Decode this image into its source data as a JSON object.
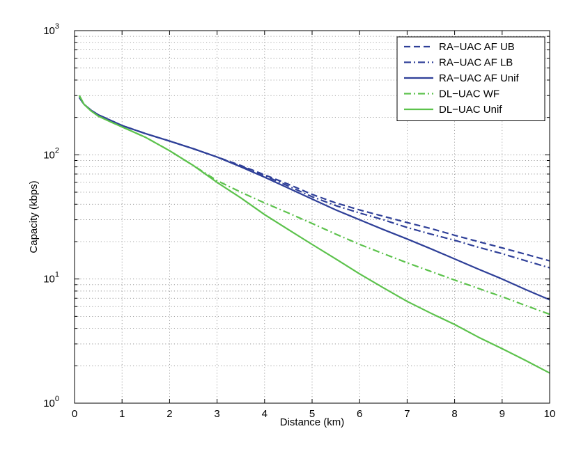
{
  "chart_data": {
    "type": "line",
    "title": "",
    "xlabel": "Distance (km)",
    "ylabel": "Capacity (kbps)",
    "xlim": [
      0,
      10
    ],
    "ylim": [
      1,
      1000
    ],
    "yscale": "log",
    "grid": true,
    "legend_position": "top-right",
    "x_ticks": [
      "0",
      "1",
      "2",
      "3",
      "4",
      "5",
      "6",
      "7",
      "8",
      "9",
      "10"
    ],
    "y_ticks": [
      {
        "value": 1,
        "base": "10",
        "exp": "0"
      },
      {
        "value": 10,
        "base": "10",
        "exp": "1"
      },
      {
        "value": 100,
        "base": "10",
        "exp": "2"
      },
      {
        "value": 1000,
        "base": "10",
        "exp": "3"
      }
    ],
    "series": [
      {
        "name": "RA−UAC AF UB",
        "color": "#2e3f98",
        "dash": "dashed",
        "x": [
          0.1,
          0.2,
          0.35,
          0.5,
          0.75,
          1,
          1.5,
          2,
          2.5,
          3,
          3.5,
          4,
          4.5,
          5,
          5.5,
          6,
          6.5,
          7,
          7.5,
          8,
          8.5,
          9,
          9.5,
          10
        ],
        "y": [
          290,
          255,
          228,
          210,
          190,
          172,
          148,
          129,
          112,
          96,
          82,
          69,
          58,
          48,
          41,
          36,
          32,
          28.5,
          25.5,
          22.5,
          20,
          17.8,
          15.8,
          14
        ]
      },
      {
        "name": "RA−UAC AF LB",
        "color": "#2e3f98",
        "dash": "dashdot",
        "x": [
          0.1,
          0.2,
          0.35,
          0.5,
          0.75,
          1,
          1.5,
          2,
          2.5,
          3,
          3.5,
          4,
          4.5,
          5,
          5.5,
          6,
          6.5,
          7,
          7.5,
          8,
          8.5,
          9,
          9.5,
          10
        ],
        "y": [
          290,
          255,
          228,
          210,
          190,
          172,
          148,
          129,
          112,
          96,
          81,
          68,
          56,
          46,
          39,
          34,
          30,
          26,
          23,
          20.5,
          18,
          16,
          14,
          12.3
        ]
      },
      {
        "name": "RA−UAC AF Unif",
        "color": "#2e3f98",
        "dash": "solid",
        "x": [
          0.1,
          0.2,
          0.35,
          0.5,
          0.75,
          1,
          1.5,
          2,
          2.5,
          3,
          3.5,
          4,
          4.5,
          5,
          5.5,
          6,
          6.5,
          7,
          7.5,
          8,
          8.5,
          9,
          9.5,
          10
        ],
        "y": [
          290,
          255,
          228,
          210,
          190,
          172,
          148,
          129,
          112,
          96,
          80,
          66,
          54,
          44,
          36,
          30,
          25,
          21,
          17.5,
          14.5,
          12,
          10,
          8.2,
          6.8
        ]
      },
      {
        "name": "DL−UAC WF",
        "color": "#5cc24c",
        "dash": "dashdot",
        "x": [
          0.1,
          0.2,
          0.35,
          0.5,
          0.75,
          1,
          1.5,
          2,
          2.5,
          3,
          3.5,
          4,
          4.5,
          5,
          5.5,
          6,
          6.5,
          7,
          7.5,
          8,
          8.5,
          9,
          9.5,
          10
        ],
        "y": [
          300,
          255,
          225,
          205,
          185,
          168,
          138,
          108,
          82,
          62,
          50,
          41,
          34,
          28,
          23,
          19,
          16,
          13.5,
          11.5,
          9.8,
          8.4,
          7.2,
          6.1,
          5.2
        ]
      },
      {
        "name": "DL−UAC Unif",
        "color": "#5cc24c",
        "dash": "solid",
        "x": [
          0.1,
          0.2,
          0.35,
          0.5,
          0.75,
          1,
          1.5,
          2,
          2.5,
          3,
          3.5,
          4,
          4.5,
          5,
          5.5,
          6,
          6.5,
          7,
          7.5,
          8,
          8.5,
          9,
          9.5,
          10
        ],
        "y": [
          300,
          255,
          225,
          205,
          185,
          168,
          138,
          108,
          82,
          60,
          45,
          33,
          25,
          19,
          14.5,
          11,
          8.5,
          6.6,
          5.3,
          4.3,
          3.4,
          2.75,
          2.2,
          1.75
        ]
      }
    ]
  }
}
